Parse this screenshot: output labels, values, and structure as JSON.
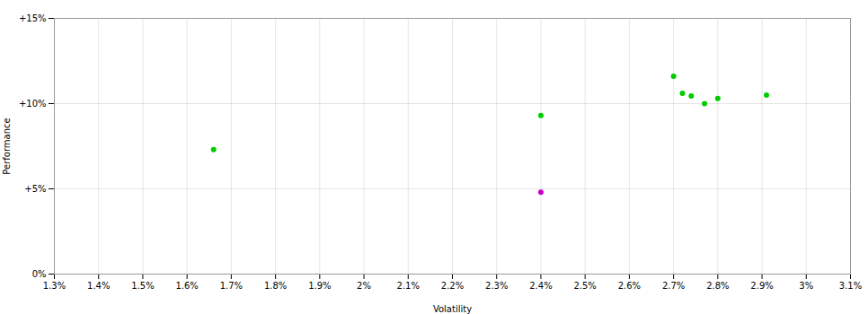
{
  "chart_data": {
    "type": "scatter",
    "xlabel": "Volatility",
    "ylabel": "Performance",
    "xlim": [
      1.3,
      3.1
    ],
    "ylim": [
      0,
      15
    ],
    "xticks": [
      {
        "value": 1.3,
        "label": "1.3%"
      },
      {
        "value": 1.4,
        "label": "1.4%"
      },
      {
        "value": 1.5,
        "label": "1.5%"
      },
      {
        "value": 1.6,
        "label": "1.6%"
      },
      {
        "value": 1.7,
        "label": "1.7%"
      },
      {
        "value": 1.8,
        "label": "1.8%"
      },
      {
        "value": 1.9,
        "label": "1.9%"
      },
      {
        "value": 2.0,
        "label": "2%"
      },
      {
        "value": 2.1,
        "label": "2.1%"
      },
      {
        "value": 2.2,
        "label": "2.2%"
      },
      {
        "value": 2.3,
        "label": "2.3%"
      },
      {
        "value": 2.4,
        "label": "2.4%"
      },
      {
        "value": 2.5,
        "label": "2.5%"
      },
      {
        "value": 2.6,
        "label": "2.6%"
      },
      {
        "value": 2.7,
        "label": "2.7%"
      },
      {
        "value": 2.8,
        "label": "2.8%"
      },
      {
        "value": 2.9,
        "label": "2.9%"
      },
      {
        "value": 3.0,
        "label": "3%"
      },
      {
        "value": 3.1,
        "label": "3.1%"
      }
    ],
    "yticks": [
      {
        "value": 0,
        "label": "0%"
      },
      {
        "value": 5,
        "label": "+5%"
      },
      {
        "value": 10,
        "label": "+10%"
      },
      {
        "value": 15,
        "label": "+15%"
      }
    ],
    "grid": true,
    "series": [
      {
        "color": "#00cc00",
        "x": [
          1.66,
          2.4,
          2.7,
          2.72,
          2.74,
          2.77,
          2.8,
          2.91
        ],
        "values": [
          7.3,
          9.3,
          11.6,
          10.6,
          10.45,
          10.0,
          10.3,
          10.5
        ]
      },
      {
        "color": "#cc00cc",
        "x": [
          2.4
        ],
        "values": [
          4.8
        ]
      }
    ]
  }
}
